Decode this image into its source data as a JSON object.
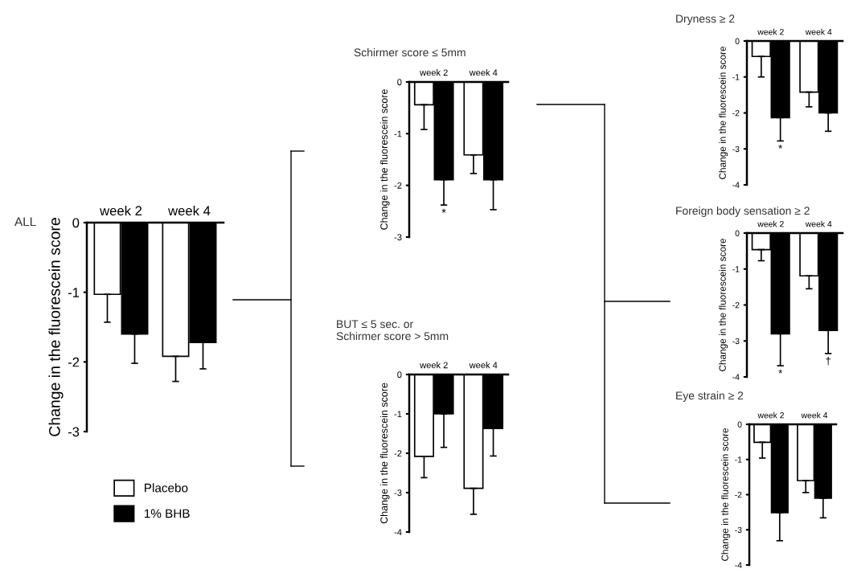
{
  "chart_data": [
    {
      "type": "bar",
      "title": "ALL",
      "ylabel": "Change in the fluorescein score",
      "categories": [
        "week 2",
        "week 4"
      ],
      "ylim": [
        -3,
        0
      ],
      "yticks": [
        0,
        {
          "value": -1,
          "label": "-1"
        },
        {
          "value": -2,
          "label": "-2"
        },
        {
          "value": -3,
          "label": "-3"
        }
      ],
      "legend": "bottom left",
      "series": [
        {
          "name": "Placebo",
          "color": "#ffffff",
          "values": [
            -1.03,
            -1.92
          ],
          "errors": [
            [
              -1.43,
              -1.03
            ],
            [
              -2.28,
              -1.92
            ]
          ]
        },
        {
          "name": "1% BHB",
          "color": "#000000",
          "values": [
            -1.6,
            -1.72
          ],
          "errors": [
            [
              -2.02,
              -1.6
            ],
            [
              -2.1,
              -1.72
            ]
          ]
        }
      ]
    },
    {
      "type": "bar",
      "title": "Schirmer score ≤ 5mm",
      "ylabel": "Change in the fluorescein score",
      "categories": [
        "week 2",
        "week 4"
      ],
      "ylim": [
        -3,
        0
      ],
      "yticks": [
        0,
        {
          "value": -1,
          "label": "-1"
        },
        {
          "value": -2,
          "label": "-2"
        },
        {
          "value": -3,
          "label": "-3"
        }
      ],
      "series": [
        {
          "color": "#ffffff",
          "values": [
            -0.44,
            -1.41
          ],
          "errors": [
            [
              -0.92,
              -0.44
            ],
            [
              -1.77,
              -1.41
            ]
          ]
        },
        {
          "color": "#000000",
          "values": [
            -1.89,
            -1.89
          ],
          "errors": [
            [
              -2.38,
              -1.89
            ],
            [
              -2.47,
              -1.89
            ]
          ]
        }
      ],
      "annotations": [
        "*"
      ]
    },
    {
      "type": "bar",
      "title": "BUT ≤ 5 sec. or\nSchirmer score > 5mm",
      "ylabel": "Change in the fluorescein score",
      "categories": [
        "week 2",
        "week 4"
      ],
      "ylim": [
        -4,
        0
      ],
      "yticks": [
        0,
        {
          "value": -1,
          "label": "-1"
        },
        {
          "value": -2,
          "label": "-2"
        },
        {
          "value": -3,
          "label": "-3"
        },
        {
          "value": -4,
          "label": "-4"
        }
      ],
      "series": [
        {
          "color": "#ffffff",
          "values": [
            -2.08,
            -2.89
          ],
          "errors": [
            [
              -2.62,
              -2.08
            ],
            [
              -3.55,
              -2.89
            ]
          ]
        },
        {
          "color": "#000000",
          "values": [
            -1.0,
            -1.37
          ],
          "errors": [
            [
              -1.85,
              -1.0
            ],
            [
              -2.07,
              -1.37
            ]
          ]
        }
      ]
    },
    {
      "type": "bar",
      "title": "Dryness ≥ 2",
      "ylabel": "Change in the fluorescein score",
      "categories": [
        "week 2",
        "week 4"
      ],
      "ylim": [
        -4,
        0
      ],
      "yticks": [
        0,
        {
          "value": -1,
          "label": "-1"
        },
        {
          "value": -2,
          "label": "-2"
        },
        {
          "value": -3,
          "label": "-3"
        },
        {
          "value": -4,
          "label": "-4"
        }
      ],
      "series": [
        {
          "color": "#ffffff",
          "values": [
            -0.43,
            -1.42
          ],
          "errors": [
            [
              -1.0,
              -0.43
            ],
            [
              -1.83,
              -1.42
            ]
          ]
        },
        {
          "color": "#000000",
          "values": [
            -2.13,
            -2.0
          ],
          "errors": [
            [
              -2.78,
              -2.13
            ],
            [
              -2.51,
              -2.0
            ]
          ]
        }
      ],
      "annotations": [
        "*"
      ]
    },
    {
      "type": "bar",
      "title": "Foreign body sensation ≥ 2",
      "ylabel": "Change in the fluorescein score",
      "categories": [
        "week 2",
        "week 4"
      ],
      "ylim": [
        -4,
        0
      ],
      "yticks": [
        0,
        {
          "value": -1,
          "label": "-1"
        },
        {
          "value": -2,
          "label": "-2"
        },
        {
          "value": -3,
          "label": "-3"
        },
        {
          "value": -4,
          "label": "-4"
        }
      ],
      "series": [
        {
          "color": "#ffffff",
          "values": [
            -0.46,
            -1.19
          ],
          "errors": [
            [
              -0.77,
              -0.46
            ],
            [
              -1.55,
              -1.19
            ]
          ]
        },
        {
          "color": "#000000",
          "values": [
            -2.8,
            -2.71
          ],
          "errors": [
            [
              -3.69,
              -2.8
            ],
            [
              -3.35,
              -2.71
            ]
          ]
        }
      ],
      "annotations": [
        "*",
        "†"
      ]
    },
    {
      "type": "bar",
      "title": "Eye strain ≥ 2",
      "ylabel": "Change in the fluorescein score",
      "categories": [
        "week 2",
        "week 4"
      ],
      "ylim": [
        -4,
        0
      ],
      "yticks": [
        0,
        {
          "value": -1,
          "label": "-1"
        },
        {
          "value": -2,
          "label": "-2"
        },
        {
          "value": -3,
          "label": "-3"
        },
        {
          "value": -4,
          "label": "-4"
        }
      ],
      "series": [
        {
          "color": "#ffffff",
          "values": [
            -0.51,
            -1.6
          ],
          "errors": [
            [
              -0.96,
              -0.51
            ],
            [
              -1.94,
              -1.6
            ]
          ]
        },
        {
          "color": "#000000",
          "values": [
            -2.51,
            -2.1
          ],
          "errors": [
            [
              -3.31,
              -2.51
            ],
            [
              -2.66,
              -2.1
            ]
          ]
        }
      ]
    }
  ]
}
